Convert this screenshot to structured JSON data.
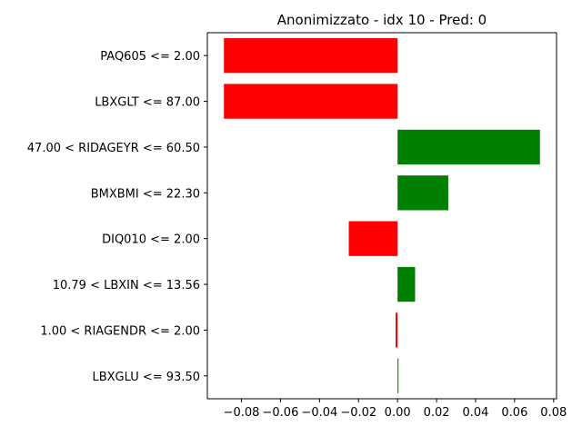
{
  "chart_data": {
    "type": "bar",
    "orientation": "horizontal",
    "title": "Anonimizzato - idx 10 - Pred: 0",
    "xlabel": "",
    "ylabel": "",
    "categories": [
      "PAQ605 <= 2.00",
      "LBXGLT <= 87.00",
      "47.00 < RIDAGEYR <= 60.50",
      "BMXBMI <= 22.30",
      "DIQ010 <= 2.00",
      "10.79 < LBXIN <= 13.56",
      "1.00 < RIAGENDR <= 2.00",
      "LBXGLU <= 93.50"
    ],
    "values": [
      -0.089,
      -0.089,
      0.073,
      0.026,
      -0.025,
      0.009,
      -0.001,
      0.0005
    ],
    "colors": {
      "positive": "#008000",
      "negative": "#ff0000"
    },
    "xlim": [
      -0.0975,
      0.0815
    ],
    "xticks": [
      -0.08,
      -0.06,
      -0.04,
      -0.02,
      0.0,
      0.02,
      0.04,
      0.06,
      0.08
    ],
    "xtick_labels": [
      "−0.08",
      "−0.06",
      "−0.04",
      "−0.02",
      "0.00",
      "0.02",
      "0.04",
      "0.06",
      "0.08"
    ],
    "grid": false,
    "legend": "none"
  }
}
